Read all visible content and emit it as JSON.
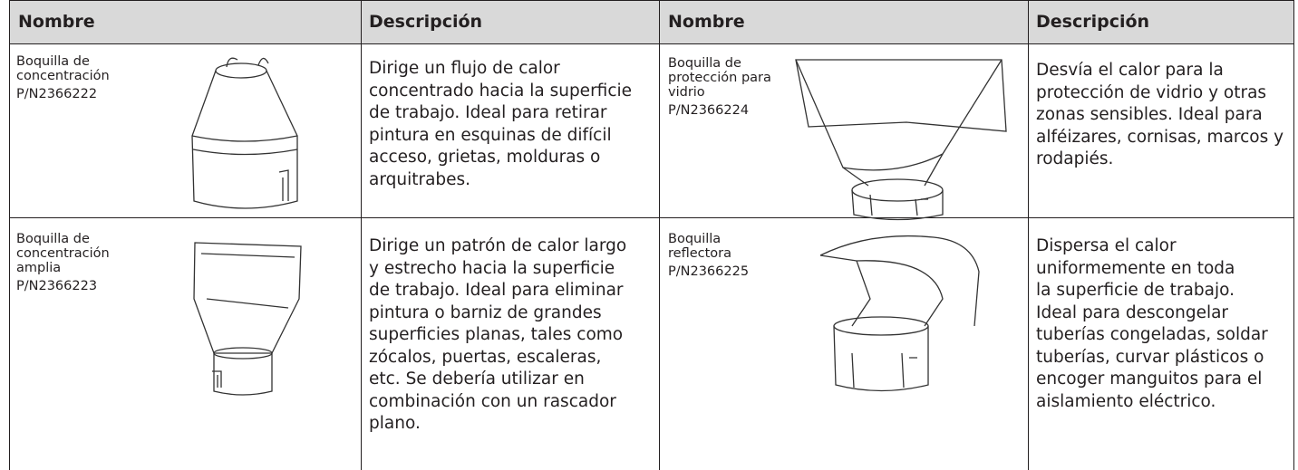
{
  "table": {
    "headers": [
      "Nombre",
      "Descripción",
      "Nombre",
      "Descripción"
    ],
    "items": [
      {
        "name": [
          "Boquilla de",
          "concentración"
        ],
        "part": "P/N2366222",
        "description": [
          "Dirige un flujo de calor",
          "concentrado hacia la superficie",
          "de trabajo. Ideal para retirar",
          "pintura en esquinas de difícil",
          "acceso, grietas, molduras o",
          "arquitrabes."
        ]
      },
      {
        "name": [
          "Boquilla de",
          "protección para",
          "vidrio"
        ],
        "part": "P/N2366224",
        "description": [
          "Desvía el calor para la",
          "protección de vidrio y otras",
          "zonas sensibles. Ideal para",
          "alféizares, cornisas, marcos y",
          "rodapiés."
        ]
      },
      {
        "name": [
          "Boquilla de",
          "concentración",
          "amplia"
        ],
        "part": "P/N2366223",
        "description": [
          "Dirige un patrón de calor largo",
          "y estrecho hacia la superficie",
          "de trabajo. Ideal para eliminar",
          "pintura o barniz de grandes",
          "superficies planas, tales como",
          "zócalos, puertas, escaleras,",
          "etc. Se debería utilizar en",
          "combinación con un rascador",
          "plano."
        ]
      },
      {
        "name": [
          "Boquilla",
          "reflectora"
        ],
        "part": "P/N2366225",
        "description": [
          "Dispersa el calor",
          "uniformemente en toda",
          "la superficie de trabajo.",
          "Ideal para descongelar",
          "tuberías congeladas, soldar",
          "tuberías, curvar plásticos o",
          "encoger manguitos para el",
          "aislamiento eléctrico."
        ]
      }
    ]
  }
}
